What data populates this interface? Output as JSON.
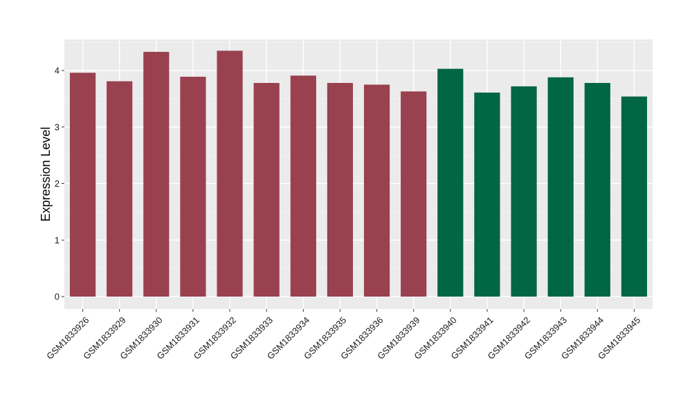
{
  "chart_data": {
    "type": "bar",
    "ylabel": "Expression Level",
    "xlabel": "",
    "ylim": [
      0,
      4.55
    ],
    "yticks": [
      0,
      1,
      2,
      3,
      4
    ],
    "grid": true,
    "panel_background": "#ebebeb",
    "categories": [
      "GSM1833926",
      "GSM1833929",
      "GSM1833930",
      "GSM1833931",
      "GSM1833932",
      "GSM1833933",
      "GSM1833934",
      "GSM1833935",
      "GSM1833936",
      "GSM1833939",
      "GSM1833940",
      "GSM1833941",
      "GSM1833942",
      "GSM1833943",
      "GSM1833944",
      "GSM1833945"
    ],
    "values": [
      3.96,
      3.81,
      4.33,
      3.89,
      4.35,
      3.78,
      3.91,
      3.78,
      3.75,
      3.63,
      4.03,
      3.61,
      3.72,
      3.88,
      3.78,
      3.54
    ],
    "bar_colors": [
      "#99414f",
      "#99414f",
      "#99414f",
      "#99414f",
      "#99414f",
      "#99414f",
      "#99414f",
      "#99414f",
      "#99414f",
      "#99414f",
      "#006644",
      "#006644",
      "#006644",
      "#006644",
      "#006644",
      "#006644"
    ]
  }
}
